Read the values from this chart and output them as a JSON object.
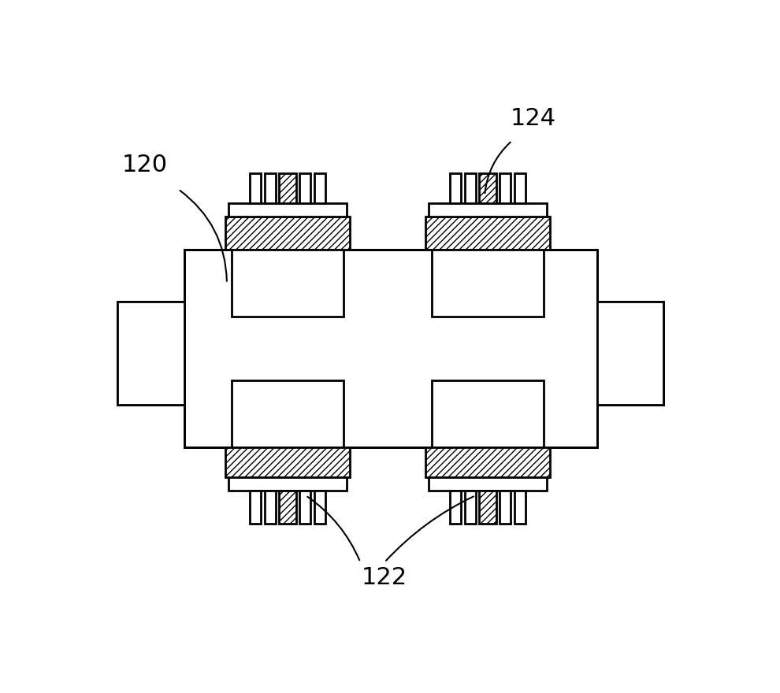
{
  "bg_color": "#ffffff",
  "line_color": "#000000",
  "lw": 2.0,
  "thin_lw": 1.5,
  "label_120": "120",
  "label_122": "122",
  "label_124": "124",
  "fig_width": 9.9,
  "fig_height": 8.8,
  "dpi": 100
}
